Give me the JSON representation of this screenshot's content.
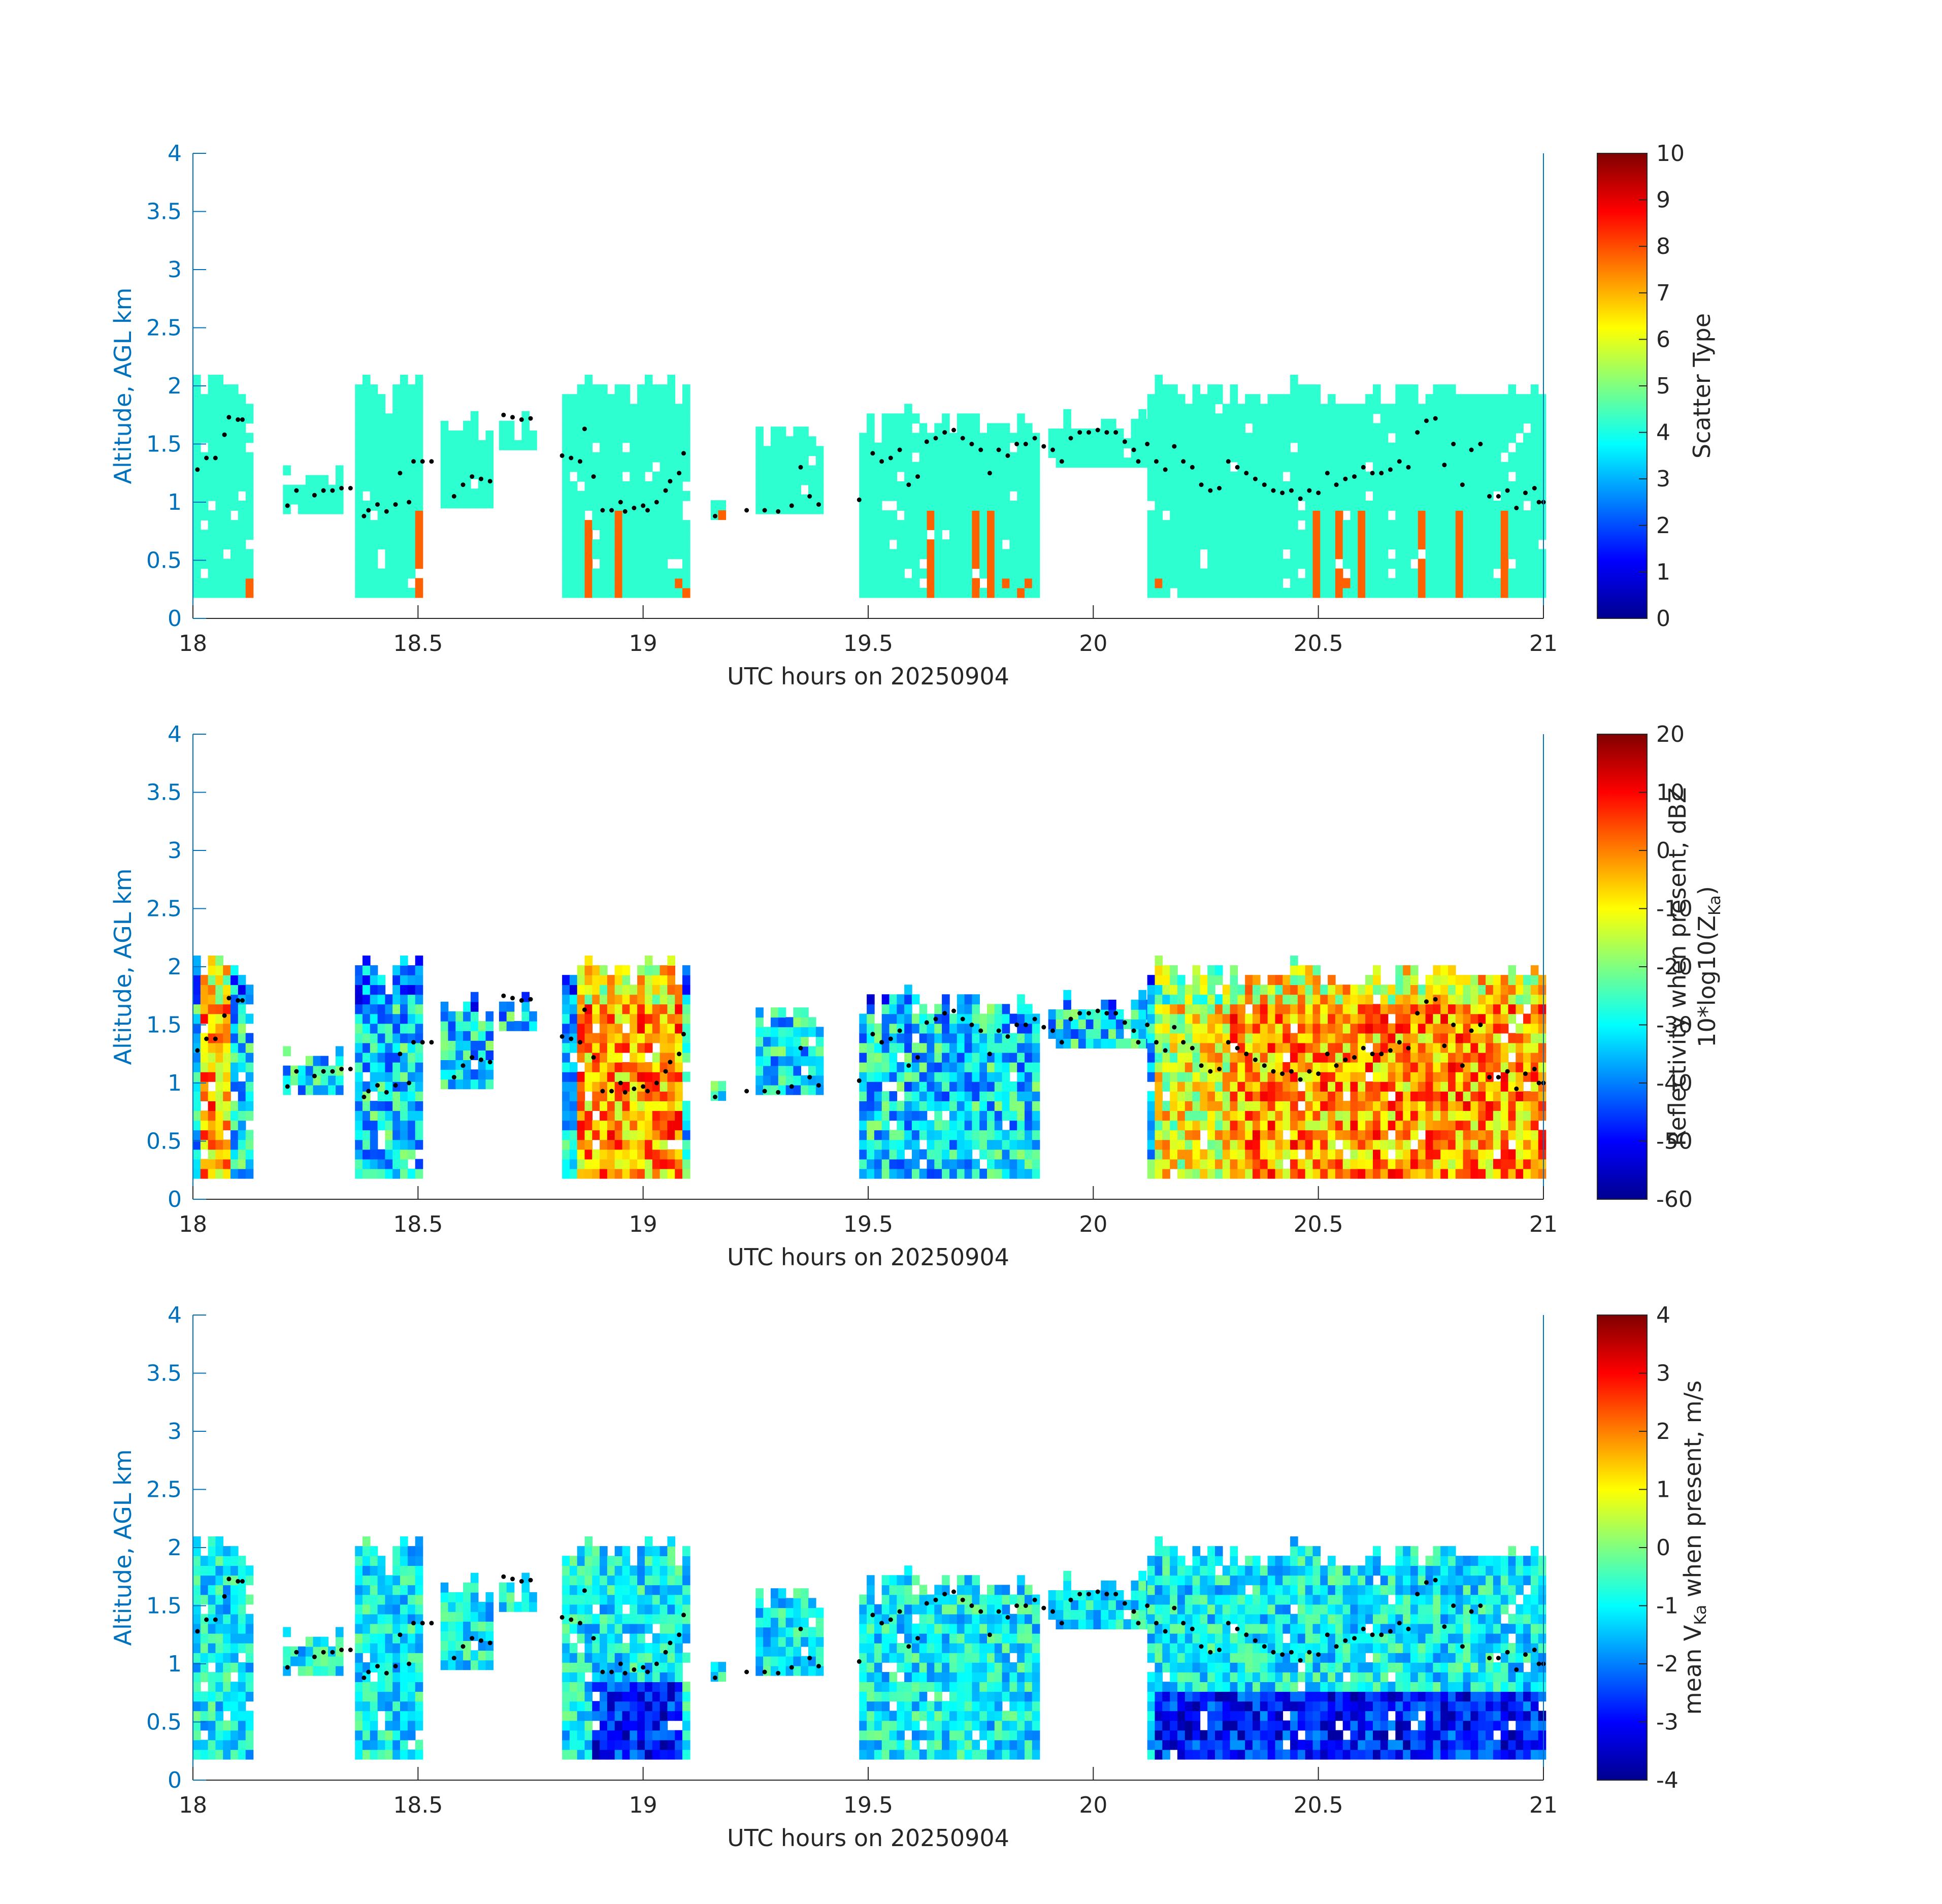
{
  "chart_data": [
    {
      "type": "heatmap",
      "x_range": [
        18,
        21
      ],
      "y_range": [
        0,
        4
      ],
      "x_ticks": [
        "18",
        "18.5",
        "19",
        "19.5",
        "20",
        "20.5",
        "21"
      ],
      "y_ticks": [
        "0",
        "0.5",
        "1",
        "1.5",
        "2",
        "2.5",
        "3",
        "3.5",
        "4"
      ],
      "xlabel": "UTC hours on 20250904",
      "ylabel": "Altitude, AGL km",
      "colorbar": {
        "label": "Scatter Type",
        "range": [
          0,
          10
        ],
        "ticks": [
          "0",
          "1",
          "2",
          "3",
          "4",
          "5",
          "6",
          "7",
          "8",
          "9",
          "10"
        ]
      },
      "colormap": "jet",
      "grid": false
    },
    {
      "type": "heatmap",
      "x_range": [
        18,
        21
      ],
      "y_range": [
        0,
        4
      ],
      "x_ticks": [
        "18",
        "18.5",
        "19",
        "19.5",
        "20",
        "20.5",
        "21"
      ],
      "y_ticks": [
        "0",
        "0.5",
        "1",
        "1.5",
        "2",
        "2.5",
        "3",
        "3.5",
        "4"
      ],
      "xlabel": "UTC hours on 20250904",
      "ylabel": "Altitude, AGL km",
      "colorbar": {
        "label": "Reflectivity when present, dBZ",
        "label2_prefix": "10*log10(Z",
        "label2_sub": "Ka",
        "label2_suffix": ")",
        "range": [
          -60,
          20
        ],
        "ticks": [
          "-60",
          "-50",
          "-40",
          "-30",
          "-20",
          "-10",
          "0",
          "10",
          "20"
        ]
      },
      "colormap": "jet",
      "grid": false
    },
    {
      "type": "heatmap",
      "x_range": [
        18,
        21
      ],
      "y_range": [
        0,
        4
      ],
      "x_ticks": [
        "18",
        "18.5",
        "19",
        "19.5",
        "20",
        "20.5",
        "21"
      ],
      "y_ticks": [
        "0",
        "0.5",
        "1",
        "1.5",
        "2",
        "2.5",
        "3",
        "3.5",
        "4"
      ],
      "xlabel": "UTC hours on 20250904",
      "ylabel": "Altitude, AGL km",
      "colorbar": {
        "label_prefix": "mean V",
        "label_sub": "Ka",
        "label_suffix": " when present, m/s",
        "range": [
          -4,
          4
        ],
        "ticks": [
          "-4",
          "-3",
          "-2",
          "-1",
          "0",
          "1",
          "2",
          "3",
          "4"
        ]
      },
      "colormap": "jet",
      "grid": false
    }
  ],
  "cloud_segments": [
    {
      "x0": 18.0,
      "x1": 18.12,
      "top": 2.05,
      "base": 0.18
    },
    {
      "x0": 18.2,
      "x1": 18.32,
      "top": 1.3,
      "base": 0.9
    },
    {
      "x0": 18.36,
      "x1": 18.5,
      "top": 2.08,
      "base": 0.18
    },
    {
      "x0": 18.55,
      "x1": 18.66,
      "top": 1.75,
      "base": 0.95
    },
    {
      "x0": 18.68,
      "x1": 18.76,
      "top": 1.75,
      "base": 1.45
    },
    {
      "x0": 18.82,
      "x1": 19.1,
      "top": 2.08,
      "base": 0.18
    },
    {
      "x0": 19.15,
      "x1": 19.17,
      "top": 1.0,
      "base": 0.85
    },
    {
      "x0": 19.25,
      "x1": 19.4,
      "top": 1.65,
      "base": 0.9
    },
    {
      "x0": 19.48,
      "x1": 19.88,
      "top": 1.8,
      "base": 0.18
    },
    {
      "x0": 19.9,
      "x1": 20.12,
      "top": 1.8,
      "base": 1.3
    },
    {
      "x0": 20.12,
      "x1": 21.0,
      "top": 2.02,
      "base": 0.18
    }
  ],
  "cloud_base_points": [
    {
      "t": 18.01,
      "h": 1.28
    },
    {
      "t": 18.03,
      "h": 1.38
    },
    {
      "t": 18.05,
      "h": 1.38
    },
    {
      "t": 18.07,
      "h": 1.58
    },
    {
      "t": 18.08,
      "h": 1.73
    },
    {
      "t": 18.1,
      "h": 1.71
    },
    {
      "t": 18.11,
      "h": 1.71
    },
    {
      "t": 18.21,
      "h": 0.97
    },
    {
      "t": 18.23,
      "h": 1.1
    },
    {
      "t": 18.27,
      "h": 1.06
    },
    {
      "t": 18.29,
      "h": 1.1
    },
    {
      "t": 18.31,
      "h": 1.1
    },
    {
      "t": 18.33,
      "h": 1.12
    },
    {
      "t": 18.35,
      "h": 1.12
    },
    {
      "t": 18.38,
      "h": 0.88
    },
    {
      "t": 18.39,
      "h": 0.93
    },
    {
      "t": 18.41,
      "h": 0.98
    },
    {
      "t": 18.43,
      "h": 0.92
    },
    {
      "t": 18.45,
      "h": 0.98
    },
    {
      "t": 18.46,
      "h": 1.25
    },
    {
      "t": 18.48,
      "h": 1.0
    },
    {
      "t": 18.49,
      "h": 1.35
    },
    {
      "t": 18.51,
      "h": 1.35
    },
    {
      "t": 18.53,
      "h": 1.35
    },
    {
      "t": 18.58,
      "h": 1.05
    },
    {
      "t": 18.6,
      "h": 1.15
    },
    {
      "t": 18.62,
      "h": 1.22
    },
    {
      "t": 18.64,
      "h": 1.2
    },
    {
      "t": 18.66,
      "h": 1.18
    },
    {
      "t": 18.69,
      "h": 1.75
    },
    {
      "t": 18.71,
      "h": 1.73
    },
    {
      "t": 18.73,
      "h": 1.71
    },
    {
      "t": 18.75,
      "h": 1.72
    },
    {
      "t": 18.82,
      "h": 1.4
    },
    {
      "t": 18.84,
      "h": 1.38
    },
    {
      "t": 18.86,
      "h": 1.35
    },
    {
      "t": 18.87,
      "h": 1.63
    },
    {
      "t": 18.89,
      "h": 1.22
    },
    {
      "t": 18.91,
      "h": 0.93
    },
    {
      "t": 18.93,
      "h": 0.93
    },
    {
      "t": 18.95,
      "h": 1.0
    },
    {
      "t": 18.96,
      "h": 0.92
    },
    {
      "t": 18.98,
      "h": 0.95
    },
    {
      "t": 19.0,
      "h": 0.97
    },
    {
      "t": 19.01,
      "h": 0.93
    },
    {
      "t": 19.03,
      "h": 1.0
    },
    {
      "t": 19.05,
      "h": 1.1
    },
    {
      "t": 19.06,
      "h": 1.18
    },
    {
      "t": 19.08,
      "h": 1.25
    },
    {
      "t": 19.09,
      "h": 1.42
    },
    {
      "t": 19.16,
      "h": 0.88
    },
    {
      "t": 19.23,
      "h": 0.93
    },
    {
      "t": 19.27,
      "h": 0.93
    },
    {
      "t": 19.3,
      "h": 0.92
    },
    {
      "t": 19.33,
      "h": 0.97
    },
    {
      "t": 19.35,
      "h": 1.3
    },
    {
      "t": 19.37,
      "h": 1.05
    },
    {
      "t": 19.39,
      "h": 0.98
    },
    {
      "t": 19.48,
      "h": 1.02
    },
    {
      "t": 19.51,
      "h": 1.42
    },
    {
      "t": 19.53,
      "h": 1.35
    },
    {
      "t": 19.55,
      "h": 1.38
    },
    {
      "t": 19.57,
      "h": 1.45
    },
    {
      "t": 19.59,
      "h": 1.15
    },
    {
      "t": 19.61,
      "h": 1.22
    },
    {
      "t": 19.63,
      "h": 1.52
    },
    {
      "t": 19.65,
      "h": 1.55
    },
    {
      "t": 19.67,
      "h": 1.6
    },
    {
      "t": 19.69,
      "h": 1.62
    },
    {
      "t": 19.71,
      "h": 1.55
    },
    {
      "t": 19.73,
      "h": 1.5
    },
    {
      "t": 19.75,
      "h": 1.45
    },
    {
      "t": 19.77,
      "h": 1.25
    },
    {
      "t": 19.79,
      "h": 1.45
    },
    {
      "t": 19.81,
      "h": 1.4
    },
    {
      "t": 19.83,
      "h": 1.5
    },
    {
      "t": 19.85,
      "h": 1.5
    },
    {
      "t": 19.87,
      "h": 1.55
    },
    {
      "t": 19.89,
      "h": 1.48
    },
    {
      "t": 19.91,
      "h": 1.45
    },
    {
      "t": 19.93,
      "h": 1.35
    },
    {
      "t": 19.95,
      "h": 1.55
    },
    {
      "t": 19.97,
      "h": 1.6
    },
    {
      "t": 19.99,
      "h": 1.6
    },
    {
      "t": 20.01,
      "h": 1.62
    },
    {
      "t": 20.03,
      "h": 1.6
    },
    {
      "t": 20.05,
      "h": 1.6
    },
    {
      "t": 20.07,
      "h": 1.52
    },
    {
      "t": 20.09,
      "h": 1.45
    },
    {
      "t": 20.1,
      "h": 1.35
    },
    {
      "t": 20.12,
      "h": 1.5
    },
    {
      "t": 20.14,
      "h": 1.35
    },
    {
      "t": 20.16,
      "h": 1.28
    },
    {
      "t": 20.18,
      "h": 1.48
    },
    {
      "t": 20.2,
      "h": 1.35
    },
    {
      "t": 20.22,
      "h": 1.3
    },
    {
      "t": 20.24,
      "h": 1.15
    },
    {
      "t": 20.26,
      "h": 1.1
    },
    {
      "t": 20.28,
      "h": 1.12
    },
    {
      "t": 20.3,
      "h": 1.35
    },
    {
      "t": 20.32,
      "h": 1.3
    },
    {
      "t": 20.34,
      "h": 1.25
    },
    {
      "t": 20.36,
      "h": 1.2
    },
    {
      "t": 20.38,
      "h": 1.15
    },
    {
      "t": 20.4,
      "h": 1.1
    },
    {
      "t": 20.42,
      "h": 1.08
    },
    {
      "t": 20.44,
      "h": 1.1
    },
    {
      "t": 20.46,
      "h": 1.03
    },
    {
      "t": 20.48,
      "h": 1.1
    },
    {
      "t": 20.5,
      "h": 1.08
    },
    {
      "t": 20.52,
      "h": 1.25
    },
    {
      "t": 20.54,
      "h": 1.15
    },
    {
      "t": 20.56,
      "h": 1.2
    },
    {
      "t": 20.58,
      "h": 1.22
    },
    {
      "t": 20.6,
      "h": 1.3
    },
    {
      "t": 20.62,
      "h": 1.25
    },
    {
      "t": 20.64,
      "h": 1.25
    },
    {
      "t": 20.66,
      "h": 1.28
    },
    {
      "t": 20.68,
      "h": 1.35
    },
    {
      "t": 20.7,
      "h": 1.3
    },
    {
      "t": 20.72,
      "h": 1.6
    },
    {
      "t": 20.74,
      "h": 1.7
    },
    {
      "t": 20.76,
      "h": 1.72
    },
    {
      "t": 20.78,
      "h": 1.32
    },
    {
      "t": 20.8,
      "h": 1.5
    },
    {
      "t": 20.82,
      "h": 1.15
    },
    {
      "t": 20.84,
      "h": 1.45
    },
    {
      "t": 20.86,
      "h": 1.5
    },
    {
      "t": 20.88,
      "h": 1.05
    },
    {
      "t": 20.9,
      "h": 1.05
    },
    {
      "t": 20.92,
      "h": 1.1
    },
    {
      "t": 20.94,
      "h": 0.95
    },
    {
      "t": 20.96,
      "h": 1.08
    },
    {
      "t": 20.98,
      "h": 1.12
    },
    {
      "t": 20.99,
      "h": 1.0
    },
    {
      "t": 21.0,
      "h": 1.0
    }
  ]
}
